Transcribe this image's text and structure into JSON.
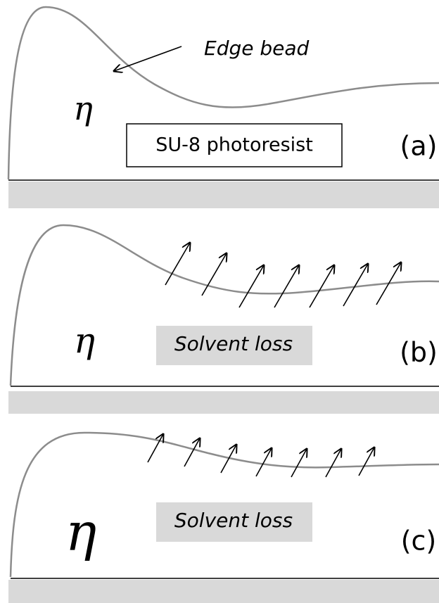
{
  "annotation": "Edge bead",
  "panels": [
    {
      "eta": "η",
      "box_text": "SU-8 photoresist",
      "label": "(a)"
    },
    {
      "eta": "η",
      "box_text": "Solvent loss",
      "label": "(b)"
    },
    {
      "eta": "η",
      "box_text": "Solvent loss",
      "label": "(c)"
    }
  ]
}
